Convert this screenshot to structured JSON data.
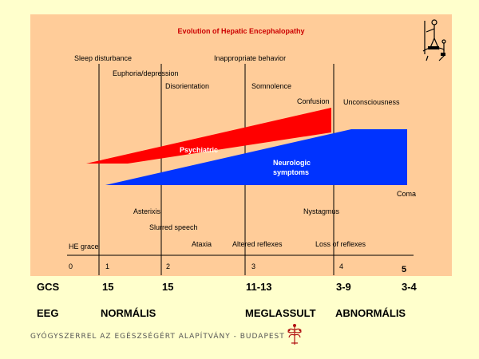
{
  "title": "Evolution of Hepatic Encephalopathy",
  "psychiatric_stages": [
    "Sleep disturbance",
    "Euphoria/depression",
    "Disorientation",
    "Inappropriate behavior",
    "Somnolence",
    "Confusion",
    "Unconsciousness"
  ],
  "neurologic_signs": [
    "Asterixis",
    "Slurred speech",
    "Nystagmus",
    "Coma"
  ],
  "reflex_labels": [
    "HE grace",
    "Ataxia",
    "Altered reflexes",
    "Loss of reflexes"
  ],
  "bands": {
    "psychiatric": "Psychiatric",
    "neurologic_line1": "Neurologic",
    "neurologic_line2": "symptoms"
  },
  "stage_ticks": [
    "0",
    "1",
    "2",
    "3",
    "4",
    "5"
  ],
  "gcs": {
    "label": "GCS",
    "values": [
      "15",
      "15",
      "11-13",
      "3-9",
      "3-4"
    ]
  },
  "eeg": {
    "label": "EEG",
    "values": [
      "NORMÁLIS",
      "MEGLASSULT",
      "ABNORMÁLIS"
    ]
  },
  "footer": "GYÓGYSZERREL AZ EGÉSZSÉGÉRT ALAPÍTVÁNY - BUDAPEST",
  "colors": {
    "psychiatric": "#ff0000",
    "neurologic": "#0033ff",
    "panel": "#ffcc99",
    "page": "#ffffcc",
    "title": "#cc0000"
  },
  "icons": [
    "don-quixote-icon",
    "foundation-logo-icon"
  ]
}
